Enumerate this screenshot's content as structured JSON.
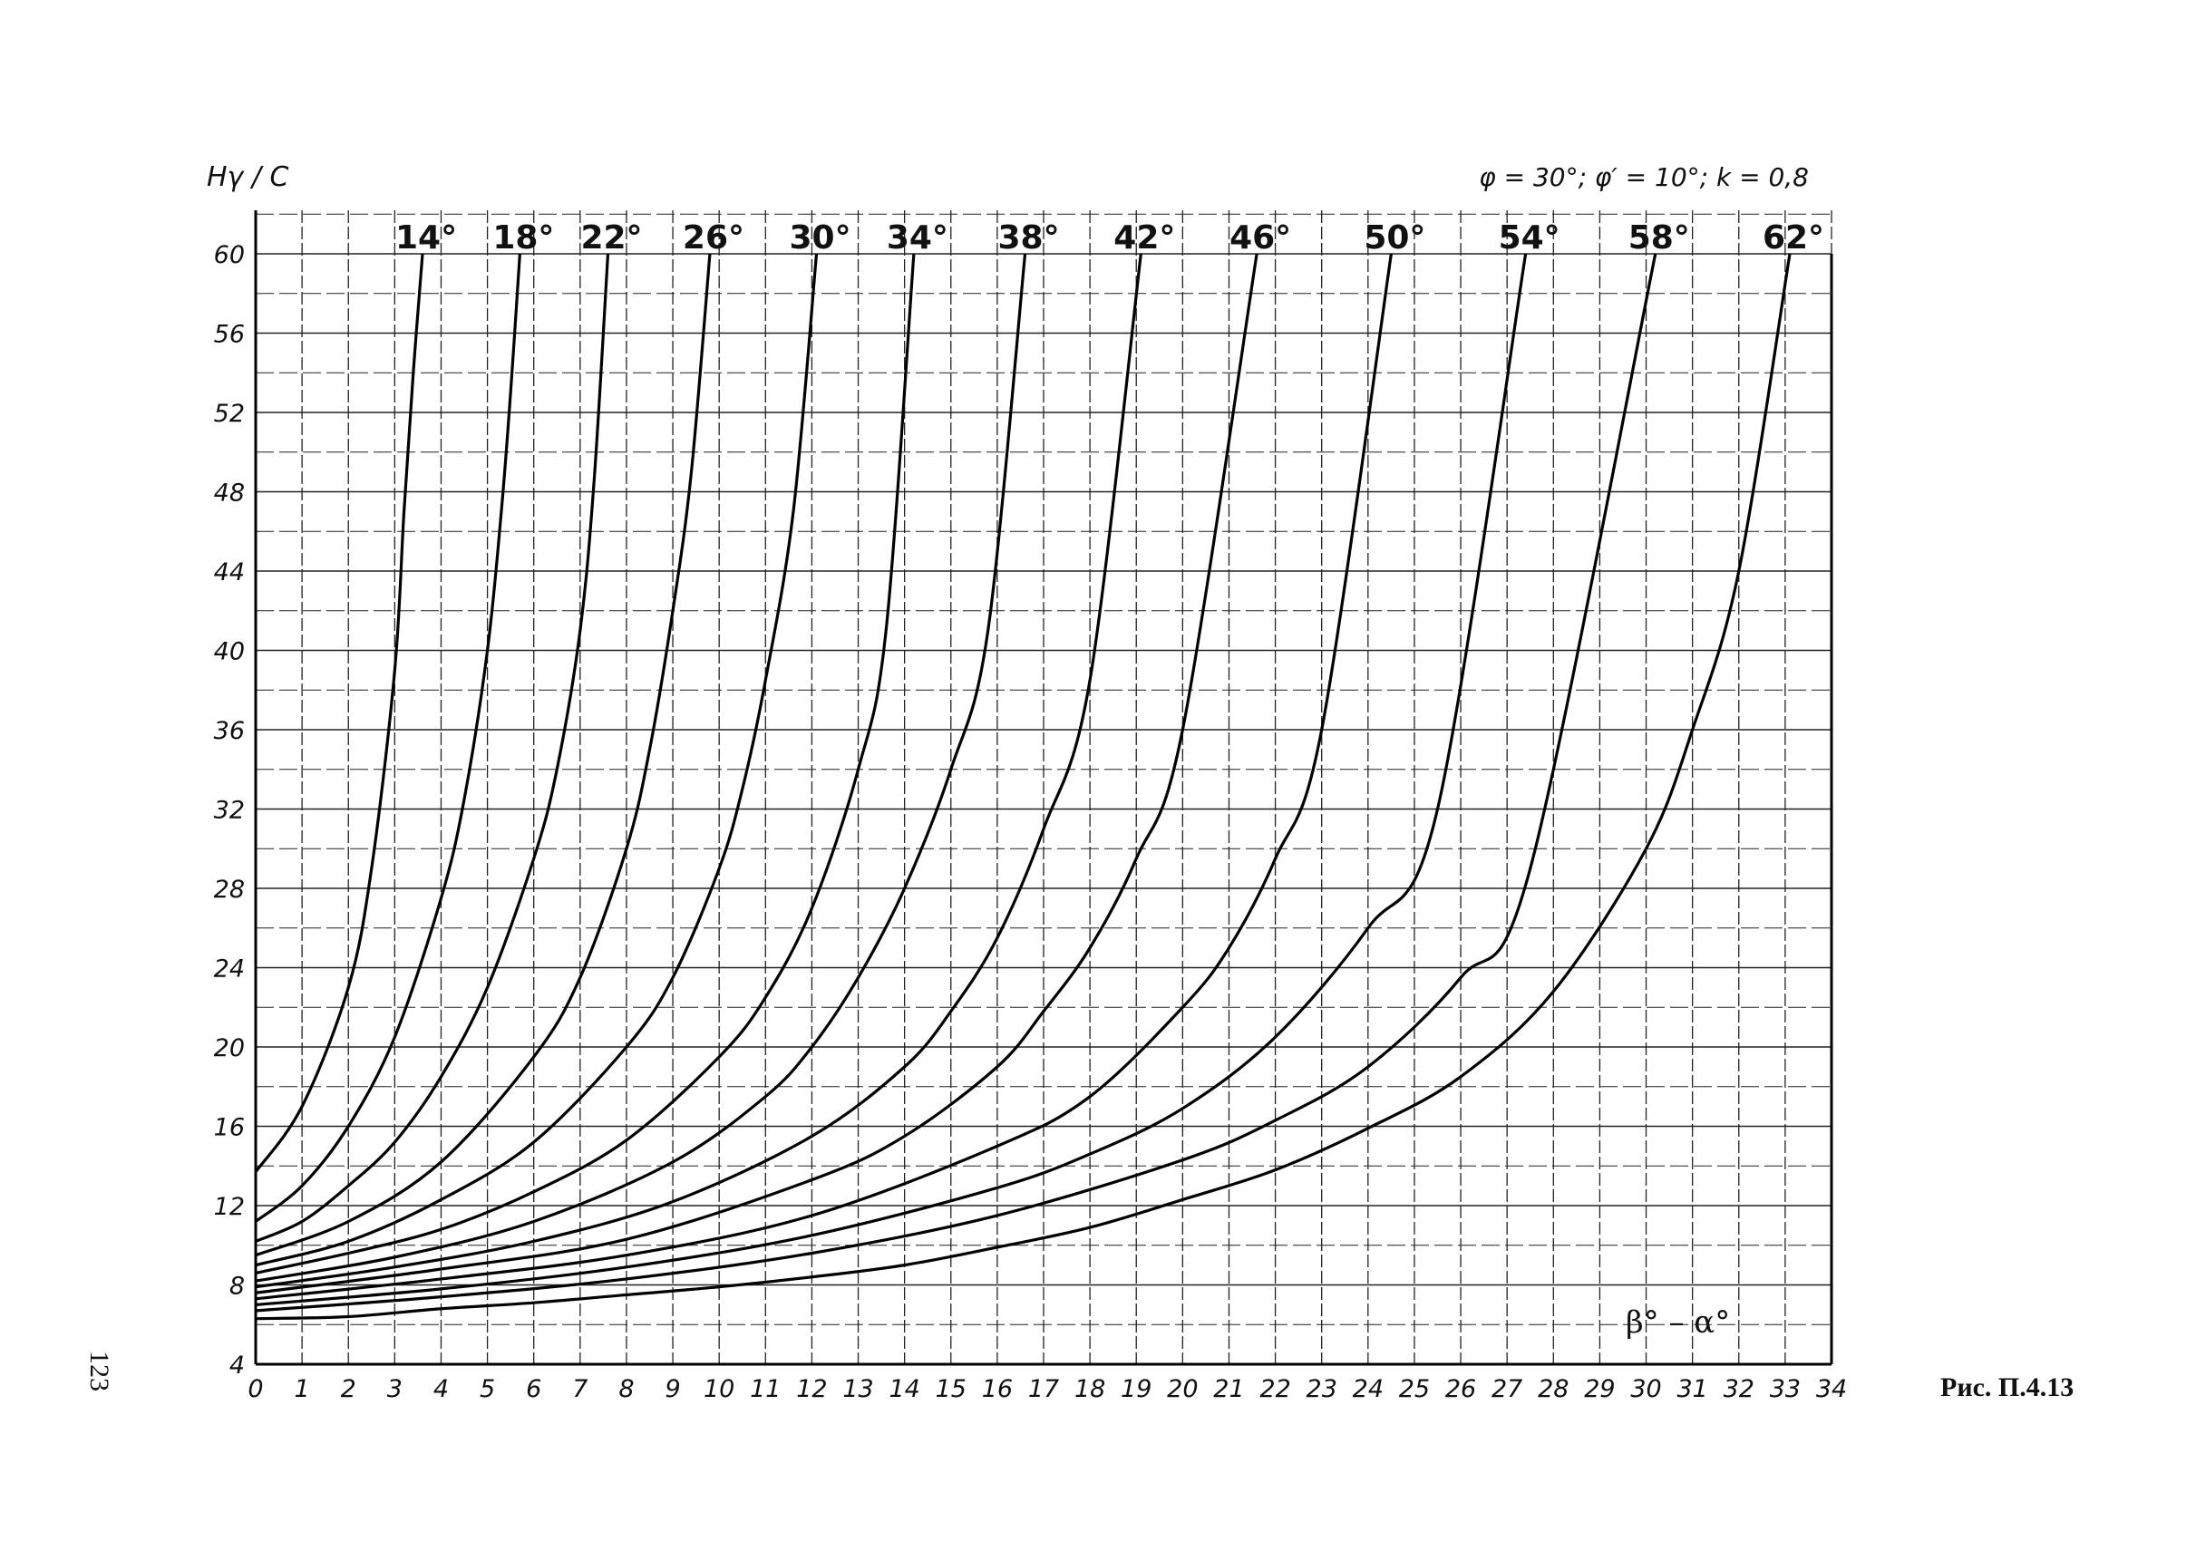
{
  "page_number": "123",
  "figure_caption": "Рис. П.4.13",
  "chart_data": {
    "type": "line",
    "title": "φ = 30°; φ′ = 10°; k = 0,8",
    "ylabel": "Hγ / C",
    "xlabel": "β° – α°",
    "xlim": [
      0,
      34
    ],
    "ylim": [
      4,
      62
    ],
    "grid": true,
    "x_ticks": [
      "0",
      "1",
      "2",
      "3",
      "4",
      "5",
      "6",
      "7",
      "8",
      "9",
      "10",
      "11",
      "12",
      "13",
      "14",
      "15",
      "16",
      "17",
      "18",
      "19",
      "20",
      "21",
      "22",
      "23",
      "24",
      "25",
      "26",
      "27",
      "28",
      "29",
      "30",
      "31",
      "32",
      "33",
      "34"
    ],
    "y_ticks": [
      "4",
      "8",
      "12",
      "16",
      "20",
      "24",
      "28",
      "32",
      "36",
      "40",
      "44",
      "48",
      "52",
      "56",
      "60"
    ],
    "series": [
      {
        "name": "14°",
        "x": [
          0,
          1,
          2,
          2.5,
          3,
          3.2,
          3.4,
          3.6
        ],
        "y": [
          13.7,
          17,
          23,
          29,
          39,
          47,
          54,
          60
        ]
      },
      {
        "name": "18°",
        "x": [
          0,
          1,
          2,
          3,
          4,
          4.5,
          5,
          5.3,
          5.5,
          5.7
        ],
        "y": [
          11.2,
          13,
          16,
          20.5,
          27.5,
          32.5,
          40,
          47,
          53,
          60
        ]
      },
      {
        "name": "22°",
        "x": [
          0,
          1,
          2,
          3,
          4,
          5,
          6,
          6.5,
          7,
          7.3,
          7.6
        ],
        "y": [
          10.2,
          11.2,
          13,
          15.2,
          18.5,
          23,
          29.5,
          34,
          41,
          48.5,
          60
        ]
      },
      {
        "name": "26°",
        "x": [
          0,
          2,
          4,
          6,
          7,
          8,
          8.5,
          9,
          9.4,
          9.8
        ],
        "y": [
          9.5,
          11.2,
          14.2,
          19.5,
          23.5,
          30,
          35,
          42,
          49,
          60
        ]
      },
      {
        "name": "30°",
        "x": [
          0,
          2,
          4,
          6,
          8,
          9,
          10,
          10.5,
          11,
          11.6,
          12.1
        ],
        "y": [
          9,
          10.2,
          12.3,
          15.2,
          20,
          23.5,
          29,
          33,
          38.5,
          47,
          60
        ]
      },
      {
        "name": "34°",
        "x": [
          0,
          2,
          4,
          6,
          8,
          10,
          11,
          12,
          13,
          13.6,
          14.2
        ],
        "y": [
          8.6,
          9.6,
          10.8,
          12.7,
          15.3,
          19.5,
          22.5,
          27,
          34,
          41,
          60
        ]
      },
      {
        "name": "38°",
        "x": [
          0,
          3,
          6,
          9,
          11,
          12,
          13,
          14,
          15,
          15.8,
          16.6
        ],
        "y": [
          8.2,
          9.4,
          11.2,
          14.2,
          17.5,
          20,
          23.5,
          28,
          34,
          41,
          60
        ]
      },
      {
        "name": "42°",
        "x": [
          0,
          3,
          6,
          9,
          12,
          14,
          15,
          16,
          17,
          18,
          19.1
        ],
        "y": [
          7.9,
          8.9,
          10.2,
          12.2,
          15.5,
          19,
          21.8,
          25.5,
          31,
          38.5,
          60
        ]
      },
      {
        "name": "46°",
        "x": [
          0,
          4,
          8,
          12,
          14,
          16,
          17,
          18,
          19,
          20,
          21.6
        ],
        "y": [
          7.6,
          8.8,
          10.3,
          13.3,
          15.5,
          19,
          21.8,
          25,
          29.5,
          36,
          60
        ]
      },
      {
        "name": "50°",
        "x": [
          0,
          4,
          8,
          12,
          16,
          18,
          20,
          21,
          22,
          23,
          24.5
        ],
        "y": [
          7.3,
          8.3,
          9.5,
          11.5,
          15,
          17.5,
          22,
          25,
          29.5,
          36,
          60
        ]
      },
      {
        "name": "54°",
        "x": [
          0,
          4,
          8,
          12,
          16,
          18,
          20,
          22,
          24,
          25.5,
          27.4
        ],
        "y": [
          7.0,
          7.8,
          8.9,
          10.5,
          12.9,
          14.6,
          16.9,
          20.5,
          26,
          32,
          60
        ]
      },
      {
        "name": "58°",
        "x": [
          0,
          4,
          8,
          12,
          16,
          20,
          22,
          24,
          26,
          27.5,
          30.2
        ],
        "y": [
          6.7,
          7.4,
          8.3,
          9.6,
          11.5,
          14.3,
          16.3,
          19,
          23.5,
          29,
          60
        ]
      },
      {
        "name": "62°",
        "x": [
          0,
          2,
          4,
          6,
          8,
          10,
          12,
          14,
          16,
          18,
          20,
          22,
          24,
          26,
          28,
          30,
          31,
          32,
          33.1
        ],
        "y": [
          6.3,
          6.4,
          6.8,
          7.1,
          7.5,
          7.9,
          8.4,
          9.0,
          9.9,
          10.9,
          12.3,
          13.8,
          15.9,
          18.5,
          22.8,
          30,
          36,
          44,
          60
        ]
      }
    ]
  }
}
